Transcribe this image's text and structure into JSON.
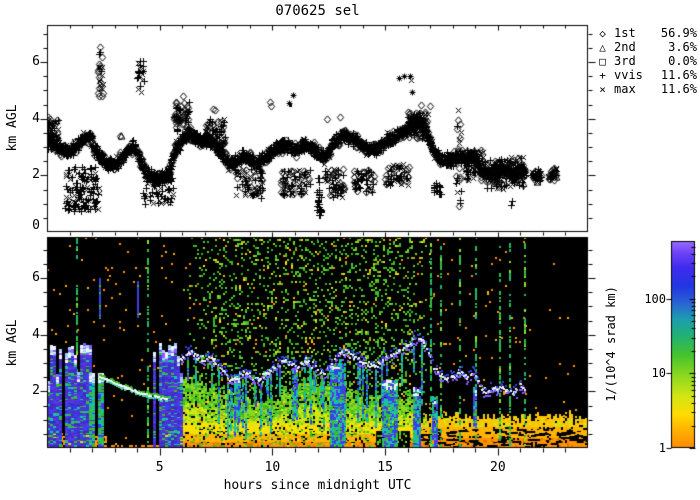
{
  "title": "070625 sel",
  "top_panel": {
    "ylabel": "km AGL",
    "ytick_labels": [
      "0",
      "2",
      "4",
      "6"
    ],
    "ytick_values": [
      0,
      2,
      4,
      6
    ]
  },
  "bottom_panel": {
    "ylabel": "km AGL",
    "ytick_labels": [
      "2",
      "4",
      "6"
    ],
    "ytick_values": [
      2,
      4,
      6
    ],
    "xtick_labels": [
      "5",
      "10",
      "15",
      "20"
    ],
    "xtick_values": [
      5,
      10,
      15,
      20
    ],
    "xlabel": "hours since midnight UTC"
  },
  "legend": {
    "items": [
      {
        "symbol": "◇",
        "name": "diamond",
        "label": "1st",
        "value": "56.9%"
      },
      {
        "symbol": "△",
        "name": "triangle",
        "label": "2nd",
        "value": "3.6%"
      },
      {
        "symbol": "□",
        "name": "square",
        "label": "3rd",
        "value": "0.0%"
      },
      {
        "symbol": "+",
        "name": "plus",
        "label": "vvis",
        "value": "11.6%"
      },
      {
        "symbol": "×",
        "name": "cross",
        "label": "max",
        "value": "11.6%"
      }
    ]
  },
  "colorbar": {
    "label": "1/(10^4 srad km)",
    "tick_labels": [
      "1",
      "10",
      "100"
    ],
    "tick_values": [
      1,
      10,
      100
    ],
    "scale": "log",
    "range": [
      1,
      600
    ],
    "stops": [
      [
        0,
        "#ff8c00"
      ],
      [
        0.08,
        "#ffae00"
      ],
      [
        0.16,
        "#ffdc00"
      ],
      [
        0.25,
        "#d2e614"
      ],
      [
        0.35,
        "#8cd81f"
      ],
      [
        0.45,
        "#44c32e"
      ],
      [
        0.54,
        "#23b272"
      ],
      [
        0.62,
        "#1c9fae"
      ],
      [
        0.7,
        "#2a63d4"
      ],
      [
        0.78,
        "#2337e2"
      ],
      [
        0.87,
        "#3e2bee"
      ],
      [
        0.94,
        "#6b43f6"
      ],
      [
        1,
        "#9b6bff"
      ]
    ]
  },
  "chart_data": [
    {
      "type": "scatter",
      "title": "070625 sel",
      "ylabel": "km AGL",
      "xlim": [
        0,
        24
      ],
      "ylim": [
        0,
        7.31
      ],
      "legend_entries": [
        "1st 56.9%",
        "2nd 3.6%",
        "3rd 0.0%",
        "vvis 11.6%",
        "max 11.6%"
      ],
      "trace": [
        [
          0,
          3.4
        ],
        [
          0.3,
          3.1
        ],
        [
          0.6,
          2.9
        ],
        [
          1,
          2.9
        ],
        [
          1.3,
          3
        ],
        [
          1.6,
          3.3
        ],
        [
          1.9,
          3.4
        ],
        [
          2.1,
          2.9
        ],
        [
          2.4,
          2.6
        ],
        [
          2.7,
          2.4
        ],
        [
          3,
          2.4
        ],
        [
          3.3,
          2.6
        ],
        [
          3.6,
          2.9
        ],
        [
          3.9,
          3
        ],
        [
          4.2,
          2.4
        ],
        [
          4.5,
          2
        ],
        [
          4.8,
          1.9
        ],
        [
          5.1,
          1.9
        ],
        [
          5.4,
          2.1
        ],
        [
          5.7,
          2.9
        ],
        [
          6,
          3.3
        ],
        [
          6.3,
          3.5
        ],
        [
          6.6,
          3.3
        ],
        [
          6.9,
          3.2
        ],
        [
          7.2,
          3.3
        ],
        [
          7.5,
          3
        ],
        [
          7.8,
          2.7
        ],
        [
          8.1,
          2.4
        ],
        [
          8.4,
          2.5
        ],
        [
          8.7,
          2.7
        ],
        [
          9,
          2.6
        ],
        [
          9.3,
          2.4
        ],
        [
          9.6,
          2.6
        ],
        [
          9.9,
          2.8
        ],
        [
          10.2,
          3
        ],
        [
          10.5,
          3.1
        ],
        [
          10.8,
          3
        ],
        [
          11.1,
          2.9
        ],
        [
          11.4,
          3.1
        ],
        [
          11.7,
          3
        ],
        [
          12,
          2.8
        ],
        [
          12.3,
          2.6
        ],
        [
          12.6,
          3
        ],
        [
          12.9,
          3.3
        ],
        [
          13.2,
          3.4
        ],
        [
          13.5,
          3.3
        ],
        [
          13.8,
          3.2
        ],
        [
          14.1,
          3
        ],
        [
          14.4,
          2.9
        ],
        [
          14.7,
          3
        ],
        [
          15,
          3.2
        ],
        [
          15.3,
          3.3
        ],
        [
          15.6,
          3.5
        ],
        [
          15.9,
          3.6
        ],
        [
          16.2,
          3.8
        ],
        [
          16.5,
          3.9
        ],
        [
          16.8,
          3.6
        ],
        [
          17.1,
          2.9
        ],
        [
          17.4,
          2.6
        ],
        [
          17.7,
          2.5
        ],
        [
          18,
          2.6
        ],
        [
          18.3,
          2.7
        ],
        [
          18.6,
          2.5
        ],
        [
          18.9,
          2.8
        ],
        [
          19.2,
          2.2
        ],
        [
          19.5,
          2
        ],
        [
          19.8,
          2.1
        ],
        [
          20.1,
          2.2
        ],
        [
          20.4,
          2.1
        ],
        [
          20.7,
          2
        ],
        [
          21,
          2.2
        ],
        [
          21.6,
          2
        ],
        [
          22.4,
          2
        ],
        [
          22.6,
          2.1
        ]
      ],
      "band": {
        "per_hour": 120,
        "jitter_t": 0.09,
        "jitter_y": 0.21,
        "gaps": [
          [
            21.2,
            21.55
          ],
          [
            21.9,
            22.3
          ],
          [
            22.72,
            24
          ]
        ],
        "sym_weights": {
          "+": 0.5,
          "d": 0.3,
          "x": 0.2
        }
      },
      "clusters": [
        {
          "t0": 0.0,
          "t1": 0.5,
          "y0": 2.9,
          "y1": 4.0,
          "n": 60,
          "syms": "+xd"
        },
        {
          "t0": 0.8,
          "t1": 2.35,
          "y0": 0.75,
          "y1": 2.3,
          "n": 130,
          "syms": "++x"
        },
        {
          "t0": 2.25,
          "t1": 2.5,
          "y0": 4.8,
          "y1": 6.3,
          "n": 26,
          "syms": "+xd"
        },
        {
          "t0": 4.0,
          "t1": 4.3,
          "y0": 4.9,
          "y1": 6.05,
          "n": 22,
          "syms": "+x"
        },
        {
          "t0": 4.25,
          "t1": 5.6,
          "y0": 1.0,
          "y1": 1.95,
          "n": 70,
          "syms": "++x"
        },
        {
          "t0": 5.6,
          "t1": 6.35,
          "y0": 3.5,
          "y1": 4.65,
          "n": 60,
          "syms": "dd+"
        },
        {
          "t0": 7.0,
          "t1": 7.9,
          "y0": 3.0,
          "y1": 4.0,
          "n": 80,
          "syms": "d+x"
        },
        {
          "t0": 8.35,
          "t1": 9.55,
          "y0": 1.2,
          "y1": 2.25,
          "n": 70,
          "syms": "+dx"
        },
        {
          "t0": 10.35,
          "t1": 11.7,
          "y0": 1.3,
          "y1": 2.2,
          "n": 80,
          "syms": "+dx"
        },
        {
          "t0": 11.95,
          "t1": 12.15,
          "y0": 0.55,
          "y1": 1.95,
          "n": 26,
          "syms": "+"
        },
        {
          "t0": 12.3,
          "t1": 13.2,
          "y0": 1.2,
          "y1": 2.25,
          "n": 60,
          "syms": "+dx"
        },
        {
          "t0": 13.6,
          "t1": 14.5,
          "y0": 1.4,
          "y1": 2.2,
          "n": 55,
          "syms": "+dx"
        },
        {
          "t0": 15.0,
          "t1": 16.05,
          "y0": 1.6,
          "y1": 2.4,
          "n": 55,
          "syms": "+dx"
        },
        {
          "t0": 16.0,
          "t1": 16.9,
          "y0": 3.3,
          "y1": 4.25,
          "n": 70,
          "syms": "dd+x"
        },
        {
          "t0": 17.15,
          "t1": 17.5,
          "y0": 1.3,
          "y1": 1.75,
          "n": 18,
          "syms": "+"
        },
        {
          "t0": 18.15,
          "t1": 18.4,
          "y0": 0.9,
          "y1": 4.05,
          "n": 24,
          "syms": "ddx+"
        },
        {
          "t0": 18.5,
          "t1": 19.35,
          "y0": 1.8,
          "y1": 2.9,
          "n": 70,
          "syms": "+dx"
        },
        {
          "t0": 19.4,
          "t1": 20.45,
          "y0": 1.5,
          "y1": 2.6,
          "n": 75,
          "syms": "+dx"
        },
        {
          "t0": 20.5,
          "t1": 21.15,
          "y0": 1.6,
          "y1": 2.7,
          "n": 55,
          "syms": "d+x"
        }
      ],
      "points": [
        {
          "t": 2.37,
          "y": 6.55,
          "s": "d"
        },
        {
          "t": 2.33,
          "y": 6.35,
          "s": "+"
        },
        {
          "t": 0.05,
          "y": 4.05,
          "s": "d"
        },
        {
          "t": 0.1,
          "y": 3.9,
          "s": "d"
        },
        {
          "t": 3.25,
          "y": 3.4,
          "s": "d"
        },
        {
          "t": 3.3,
          "y": 3.38,
          "s": "t"
        },
        {
          "t": 6.05,
          "y": 4.8,
          "s": "d"
        },
        {
          "t": 7.35,
          "y": 4.35,
          "s": "d"
        },
        {
          "t": 7.45,
          "y": 4.3,
          "s": "d"
        },
        {
          "t": 9.9,
          "y": 4.6,
          "s": "d"
        },
        {
          "t": 9.95,
          "y": 4.45,
          "s": "d"
        },
        {
          "t": 10.25,
          "y": 3.0,
          "s": "t"
        },
        {
          "t": 10.9,
          "y": 4.85,
          "s": "a"
        },
        {
          "t": 10.75,
          "y": 4.55,
          "s": "a"
        },
        {
          "t": 10.8,
          "y": 4.5,
          "s": "o"
        },
        {
          "t": 12.4,
          "y": 4.0,
          "s": "d"
        },
        {
          "t": 13.0,
          "y": 4.05,
          "s": "d"
        },
        {
          "t": 15.6,
          "y": 5.45,
          "s": "a"
        },
        {
          "t": 15.85,
          "y": 5.5,
          "s": "a"
        },
        {
          "t": 16.1,
          "y": 5.5,
          "s": "a"
        },
        {
          "t": 16.15,
          "y": 5.35,
          "s": "x"
        },
        {
          "t": 16.2,
          "y": 4.95,
          "s": "a"
        },
        {
          "t": 16.6,
          "y": 4.5,
          "s": "d"
        },
        {
          "t": 17.0,
          "y": 4.45,
          "s": "d"
        },
        {
          "t": 18.25,
          "y": 4.3,
          "s": "x"
        },
        {
          "t": 19.9,
          "y": 2.45,
          "s": "d"
        },
        {
          "t": 20.0,
          "y": 2.3,
          "s": "d"
        },
        {
          "t": 20.6,
          "y": 0.95,
          "s": "+"
        },
        {
          "t": 20.65,
          "y": 1.1,
          "s": "+"
        },
        {
          "t": 21.1,
          "y": 2.35,
          "s": "d"
        },
        {
          "t": 21.6,
          "y": 2.05,
          "s": "d"
        },
        {
          "t": 21.7,
          "y": 1.9,
          "s": "d"
        },
        {
          "t": 21.75,
          "y": 1.75,
          "s": "t"
        },
        {
          "t": 22.45,
          "y": 2.0,
          "s": "d"
        },
        {
          "t": 22.55,
          "y": 2.15,
          "s": "d"
        },
        {
          "t": 22.6,
          "y": 1.95,
          "s": "t"
        }
      ]
    },
    {
      "type": "heatmap",
      "xlabel": "hours since midnight UTC",
      "ylabel": "km AGL",
      "xlim": [
        0,
        24
      ],
      "ylim": [
        0,
        7.45
      ],
      "colorbar_label": "1/(10^4 srad km)",
      "colorbar_range": [
        1,
        600
      ],
      "palette": {
        "orange": "#ff9300",
        "orange_dark": "#d97800",
        "amber": "#ffb400",
        "amber2": "#ffc400",
        "yellow": "#ffdf00",
        "yellow_green": "#d2e614",
        "lime": "#8cd81f",
        "green": "#3dbb22",
        "green2": "#5ed032",
        "teal": "#17c2a8",
        "blue": "#3344e0",
        "ice": "#9fd0ff",
        "white": "#f0f6ff",
        "violet1": "#4a2fd6",
        "violet2": "#5638e8",
        "violet3": "#3c2cc0",
        "purple_lt": "#8a5cff"
      },
      "features": {
        "orange_noise_density": 0.013,
        "green_noise": {
          "t0": 5.9,
          "t1": 17.2,
          "peak": 0.17
        },
        "green_dashed_columns": [
          1.35,
          4.5,
          17.05,
          17.5,
          18.3,
          19.05,
          20.1,
          20.55,
          21.2
        ],
        "high_streaks": [
          {
            "t": 2.35,
            "y0": 4.6,
            "y1": 6.0
          },
          {
            "t": 4.05,
            "y0": 4.7,
            "y1": 5.9
          }
        ],
        "rain_columns": [
          {
            "t0": 0.0,
            "t1": 1.88,
            "top": 3.55,
            "style": "purple"
          },
          {
            "t0": 1.88,
            "t1": 2.6,
            "top": 2.5,
            "style": "teal"
          },
          {
            "t0": 4.7,
            "t1": 5.95,
            "top": 3.5,
            "style": "purple"
          }
        ],
        "arc": [
          [
            2.3,
            2.55
          ],
          [
            3.2,
            2.25
          ],
          [
            4.2,
            1.95
          ],
          [
            5.3,
            1.75
          ]
        ],
        "strong_columns": [
          {
            "t0": 8.3,
            "t1": 8.5,
            "top": 2.6,
            "bottom": 1.0
          },
          {
            "t0": 10.95,
            "t1": 11.12,
            "top": 2.9,
            "bottom": 1.1
          },
          {
            "t0": 12.55,
            "t1": 13.2,
            "top": 3.0,
            "bottom": 0
          },
          {
            "t0": 14.85,
            "t1": 15.55,
            "top": 2.4,
            "bottom": 0
          },
          {
            "t0": 16.25,
            "t1": 16.6,
            "top": 2.2,
            "bottom": 0
          },
          {
            "t0": 17.1,
            "t1": 17.35,
            "top": 1.9,
            "bottom": 0
          },
          {
            "t0": 18.9,
            "t1": 19.0,
            "top": 2.2,
            "bottom": 0.8
          }
        ],
        "virga_count": 50,
        "black_gap": {
          "t0": 14.6,
          "t1": 16.1,
          "top_km": 0.6
        },
        "quiet_right": {
          "t0": 21.55,
          "above_km": 1.55
        },
        "surface_day": {
          "t0": 5.65,
          "t1": 16.2,
          "top_km": 2.2
        },
        "surface_evening": {
          "t0": 16.2,
          "t1": 24,
          "top_km": 1.25
        }
      }
    }
  ]
}
